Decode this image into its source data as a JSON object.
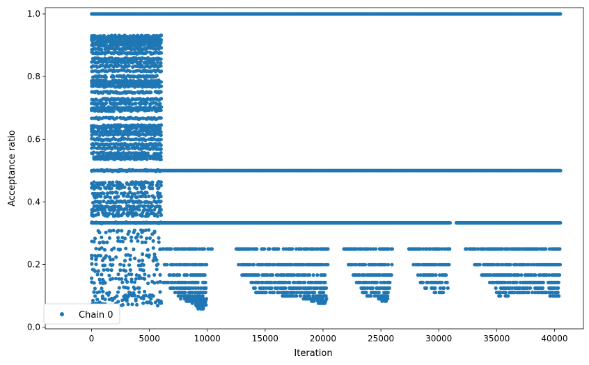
{
  "chart_data": {
    "type": "scatter",
    "title": "",
    "xlabel": "Iteration",
    "ylabel": "Acceptance ratio",
    "xlim": [
      -4000,
      42500
    ],
    "ylim": [
      -0.005,
      1.02
    ],
    "xticks": [
      0,
      5000,
      10000,
      15000,
      20000,
      25000,
      30000,
      35000,
      40000
    ],
    "yticks": [
      0.0,
      0.2,
      0.4,
      0.6,
      0.8,
      1.0
    ],
    "ytick_labels": [
      "0.0",
      "0.2",
      "0.4",
      "0.6",
      "0.8",
      "1.0"
    ],
    "grid": false,
    "legend": "bottom-left",
    "series": [
      {
        "name": "Chain 0",
        "color": "#1f77b4",
        "marker": "circle",
        "x_range": [
          0,
          40500
        ],
        "bands": [
          {
            "y": 1.0,
            "x": [
              [
                0,
                40500
              ]
            ]
          },
          {
            "y": 0.5,
            "x": [
              [
                0,
                40500
              ]
            ]
          },
          {
            "y": 0.3333,
            "x": [
              [
                0,
                31000
              ],
              [
                31500,
                40500
              ]
            ]
          },
          {
            "y": 0.25,
            "x": [
              [
                6100,
                10500
              ],
              [
                12500,
                20500
              ],
              [
                21800,
                26000
              ],
              [
                27300,
                31000
              ],
              [
                32300,
                40500
              ]
            ]
          },
          {
            "y": 0.2,
            "x": [
              [
                6300,
                10000
              ],
              [
                12700,
                20500
              ],
              [
                22200,
                26000
              ],
              [
                27800,
                31000
              ],
              [
                33100,
                40500
              ]
            ]
          },
          {
            "y": 0.1667,
            "x": [
              [
                6700,
                9800
              ],
              [
                13000,
                20400
              ],
              [
                22600,
                25900
              ],
              [
                28200,
                30900
              ],
              [
                33600,
                40500
              ]
            ]
          },
          {
            "y": 0.1429,
            "x": [
              [
                6200,
                9900
              ],
              [
                13800,
                20300
              ],
              [
                22900,
                25800
              ],
              [
                28400,
                30800
              ],
              [
                34400,
                40400
              ]
            ]
          },
          {
            "y": 0.125,
            "x": [
              [
                6800,
                9900
              ],
              [
                14000,
                20300
              ],
              [
                23300,
                25800
              ],
              [
                28800,
                30800
              ],
              [
                34800,
                40300
              ]
            ]
          },
          {
            "y": 0.1111,
            "x": [
              [
                7200,
                9900
              ],
              [
                14200,
                20200
              ],
              [
                23400,
                25700
              ],
              [
                29600,
                30700
              ],
              [
                35000,
                40300
              ]
            ]
          },
          {
            "y": 0.1,
            "x": [
              [
                7500,
                9900
              ],
              [
                16500,
                20300
              ],
              [
                23800,
                25700
              ],
              [
                35200,
                36000
              ],
              [
                39600,
                40400
              ]
            ]
          },
          {
            "y": 0.0909,
            "x": [
              [
                7700,
                9900
              ],
              [
                18200,
                20400
              ],
              [
                24800,
                25600
              ]
            ]
          },
          {
            "y": 0.0833,
            "x": [
              [
                8200,
                9900
              ],
              [
                19000,
                20300
              ],
              [
                25100,
                25500
              ]
            ]
          },
          {
            "y": 0.0769,
            "x": [
              [
                8700,
                9900
              ],
              [
                19600,
                20300
              ]
            ]
          },
          {
            "y": 0.0714,
            "x": [
              [
                9000,
                9900
              ]
            ]
          },
          {
            "y": 0.0667,
            "x": [
              [
                9100,
                9800
              ]
            ]
          },
          {
            "y": 0.0588,
            "x": [
              [
                9200,
                9700
              ]
            ]
          }
        ],
        "early_phase": {
          "x": [
            0,
            6000
          ],
          "y_range": [
            0.05,
            0.94
          ]
        }
      }
    ]
  }
}
